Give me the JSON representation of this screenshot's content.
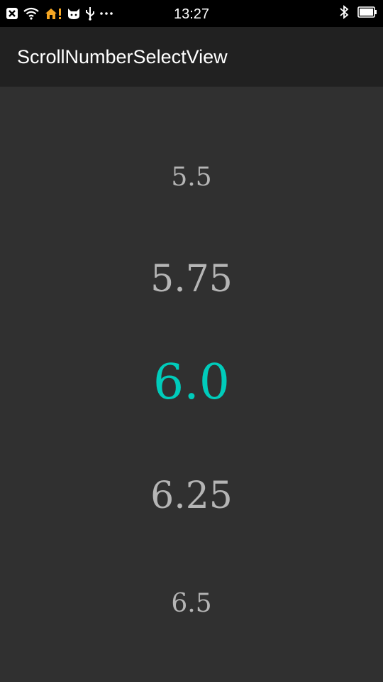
{
  "status_bar": {
    "time": "13:27",
    "left_icons": [
      "close-box-icon",
      "wifi-icon",
      "home-alert-icon",
      "cat-icon",
      "usb-icon",
      "more-dots-icon"
    ],
    "right_icons": [
      "bluetooth-icon",
      "battery-icon"
    ]
  },
  "app_bar": {
    "title": "ScrollNumberSelectView"
  },
  "picker": {
    "values": [
      "5.5",
      "5.75",
      "6.0",
      "6.25",
      "6.5"
    ],
    "selected_value": "6.0"
  },
  "colors": {
    "background": "#303030",
    "app_bar": "#212121",
    "status_bar": "#000000",
    "accent": "#00ccbb",
    "unselected_text": "#b5b5b5"
  }
}
